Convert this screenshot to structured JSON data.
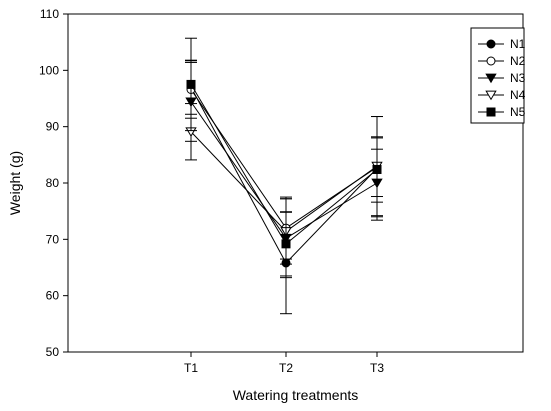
{
  "chart_data": {
    "type": "line",
    "title": "",
    "xlabel": "Watering treatments",
    "ylabel": "Weight (g)",
    "categories": [
      "T1",
      "T2",
      "T3"
    ],
    "ylim": [
      50,
      110
    ],
    "yticks": [
      50,
      60,
      70,
      80,
      90,
      100,
      110
    ],
    "grid": false,
    "legend_position": "top-right",
    "series": [
      {
        "name": "N1",
        "marker": "circle-filled",
        "values": [
          97.0,
          65.8,
          82.6
        ],
        "errors": [
          4.8,
          9.0,
          9.2
        ]
      },
      {
        "name": "N2",
        "marker": "circle-open",
        "values": [
          96.6,
          72.0,
          82.8
        ],
        "errors": [
          5.1,
          5.5,
          5.2
        ]
      },
      {
        "name": "N3",
        "marker": "triangle-down-filled",
        "values": [
          94.4,
          70.2,
          80.0
        ],
        "errors": [
          7.0,
          7.0,
          6.0
        ]
      },
      {
        "name": "N4",
        "marker": "triangle-down-open",
        "values": [
          89.1,
          71.4,
          83.0
        ],
        "errors": [
          5.0,
          5.8,
          8.8
        ]
      },
      {
        "name": "N5",
        "marker": "square-filled",
        "values": [
          97.5,
          69.2,
          82.4
        ],
        "errors": [
          8.2,
          5.7,
          5.8
        ]
      }
    ]
  }
}
